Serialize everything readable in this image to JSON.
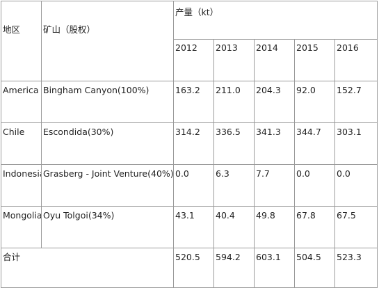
{
  "header": {
    "region_label": "地区",
    "mine_label": "矿山（股权）",
    "production_label": "产量（kt）",
    "years": [
      "2012",
      "2013",
      "2014",
      "2015",
      "2016"
    ]
  },
  "rows": [
    {
      "region": "America",
      "mine": "Bingham Canyon(100%)",
      "values": [
        "163.2",
        "211.0",
        "204.3",
        "92.0",
        "152.7"
      ]
    },
    {
      "region": "Chile",
      "mine": "Escondida(30%)",
      "values": [
        "314.2",
        "336.5",
        "341.3",
        "344.7",
        "303.1"
      ]
    },
    {
      "region": "Indonesia",
      "mine": "Grasberg - Joint Venture(40%)",
      "values": [
        "0.0",
        "6.3",
        "7.7",
        "0.0",
        "0.0"
      ]
    },
    {
      "region": "Mongolia",
      "mine": "Oyu Tolgoi(34%)",
      "values": [
        "43.1",
        "40.4",
        "49.8",
        "67.8",
        "67.5"
      ]
    }
  ],
  "total": {
    "label": "合计",
    "values": [
      "520.5",
      "594.2",
      "603.1",
      "504.5",
      "523.3"
    ]
  }
}
